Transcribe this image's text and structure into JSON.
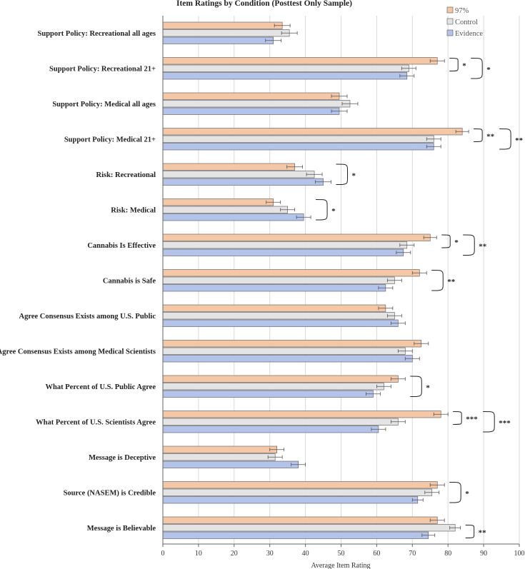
{
  "chart_data": {
    "type": "bar",
    "orientation": "horizontal",
    "title": "Item Ratings by Condition (Posttest Only Sample)",
    "xlabel": "Average Item Rating",
    "xlim": [
      0,
      100
    ],
    "xticks": [
      0,
      10,
      20,
      30,
      40,
      50,
      60,
      70,
      80,
      90,
      100
    ],
    "grid": "vertical",
    "legend_position": "top-right",
    "categories": [
      "Support Policy: Recreational all ages",
      "Support Policy: Recreational 21+",
      "Support Policy: Medical all ages",
      "Support Policy: Medical 21+",
      "Risk: Recreational",
      "Risk: Medical",
      "Cannabis Is Effective",
      "Cannabis is Safe",
      "Agree Consensus Exists among U.S. Public",
      "Agree Consensus Exists among Medical Scientists",
      "What Percent of U.S. Public Agree",
      "What Percent of U.S. Scientists Agree",
      "Message is Deceptive",
      "Source (NASEM) is Credible",
      "Message is Believable"
    ],
    "series": [
      {
        "name": "97%",
        "color": "#f4c7a6",
        "values": [
          33.5,
          77,
          49.5,
          84,
          37,
          31,
          75,
          72,
          62.5,
          72.5,
          66,
          78,
          32,
          77,
          77
        ],
        "errors": [
          2.2,
          2,
          2.2,
          1.8,
          2.2,
          2,
          1.8,
          2,
          2,
          2,
          2,
          2,
          2,
          2,
          2
        ]
      },
      {
        "name": "Control",
        "color": "#e4e4e4",
        "values": [
          35.5,
          69,
          52.5,
          76,
          42.5,
          35,
          68.5,
          65,
          65,
          68,
          62,
          66,
          31.5,
          75.5,
          82
        ],
        "errors": [
          2.2,
          2,
          2.2,
          2,
          2.2,
          2,
          2,
          2,
          2,
          2,
          2,
          2,
          2,
          2,
          1.5
        ]
      },
      {
        "name": "Evidence",
        "color": "#b4c3ea",
        "values": [
          31,
          68.5,
          49.5,
          76,
          45,
          39.5,
          67.5,
          62.5,
          66,
          70,
          59,
          60.5,
          38,
          71.5,
          74.5
        ],
        "errors": [
          2.2,
          2,
          2.2,
          2,
          2.2,
          2,
          2,
          2,
          2,
          2,
          2,
          2,
          2,
          1.5,
          1.8
        ]
      }
    ],
    "significance": [
      {
        "category": 1,
        "rows": [
          0,
          1
        ],
        "label": "*"
      },
      {
        "category": 1,
        "rows": [
          0,
          2
        ],
        "label": "*"
      },
      {
        "category": 3,
        "rows": [
          0,
          1
        ],
        "label": "**"
      },
      {
        "category": 3,
        "rows": [
          0,
          2
        ],
        "label": "**"
      },
      {
        "category": 4,
        "rows": [
          0,
          2
        ],
        "label": "*"
      },
      {
        "category": 5,
        "rows": [
          0,
          2
        ],
        "label": "*"
      },
      {
        "category": 6,
        "rows": [
          0,
          1
        ],
        "label": "*"
      },
      {
        "category": 6,
        "rows": [
          0,
          2
        ],
        "label": "**"
      },
      {
        "category": 7,
        "rows": [
          0,
          2
        ],
        "label": "**"
      },
      {
        "category": 10,
        "rows": [
          0,
          2
        ],
        "label": "*"
      },
      {
        "category": 11,
        "rows": [
          0,
          1
        ],
        "label": "***"
      },
      {
        "category": 11,
        "rows": [
          0,
          2
        ],
        "label": "***"
      },
      {
        "category": 13,
        "rows": [
          0,
          2
        ],
        "label": "*"
      },
      {
        "category": 14,
        "rows": [
          1,
          2
        ],
        "label": "**"
      }
    ]
  }
}
